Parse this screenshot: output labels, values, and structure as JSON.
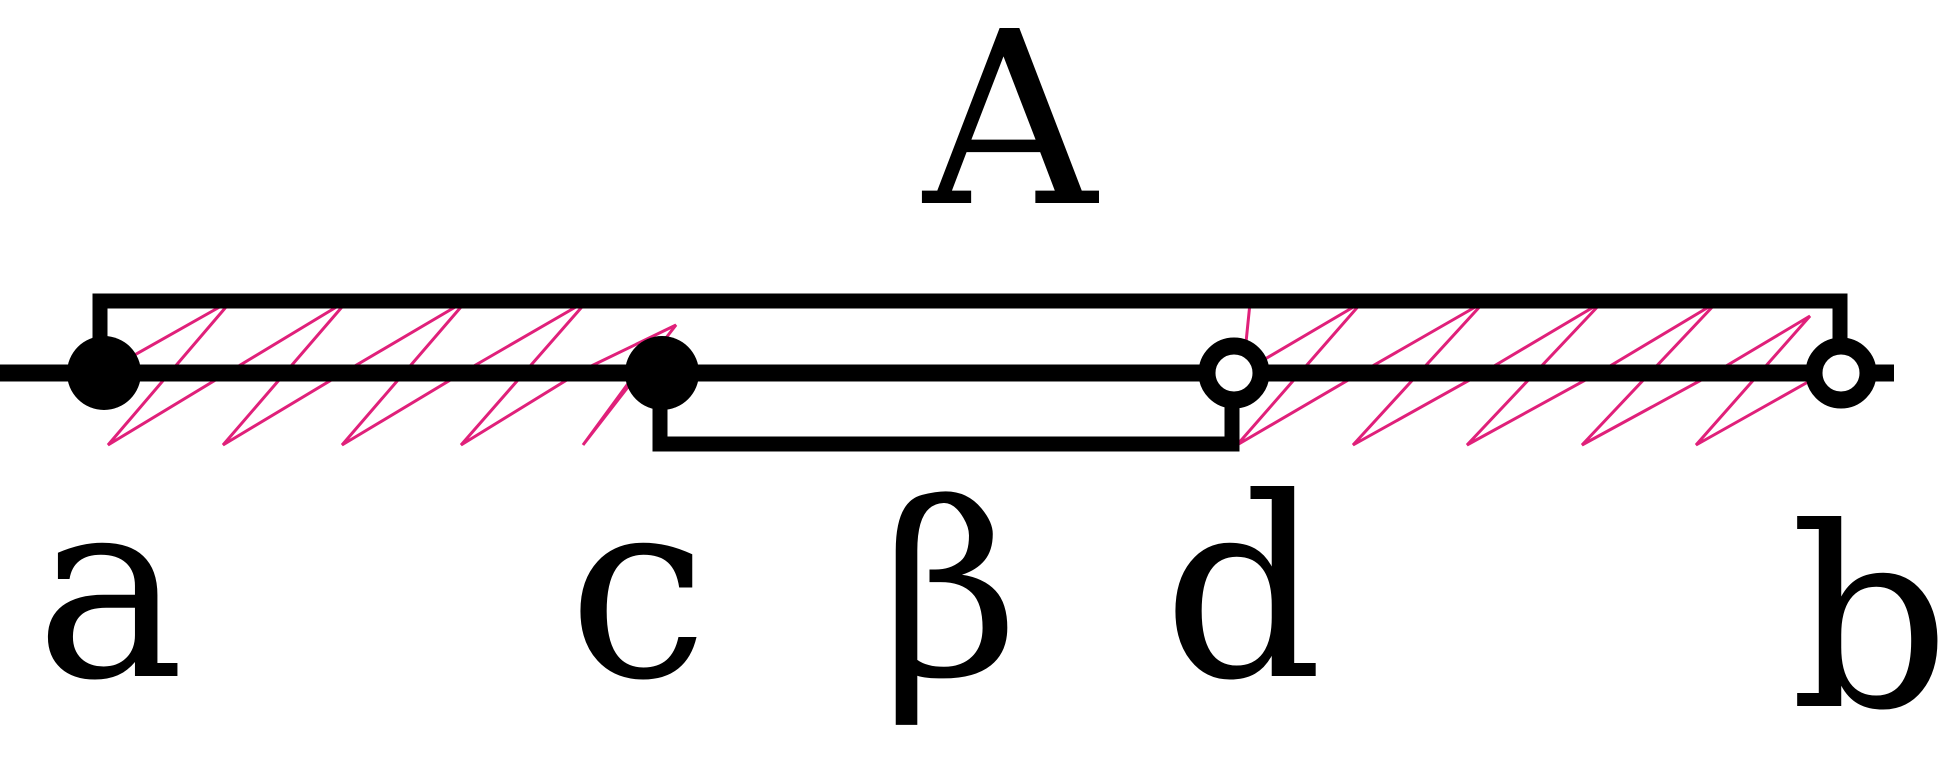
{
  "labels": {
    "set_A": "A",
    "beta": "β",
    "a": "a",
    "c": "c",
    "d": "d",
    "b": "b"
  },
  "points": {
    "a": {
      "endpoint": "closed"
    },
    "c": {
      "endpoint": "closed"
    },
    "d": {
      "endpoint": "open"
    },
    "b": {
      "endpoint": "open"
    }
  },
  "colors": {
    "line": "#000000",
    "hatch": "#e0207a",
    "background": "#ffffff"
  }
}
